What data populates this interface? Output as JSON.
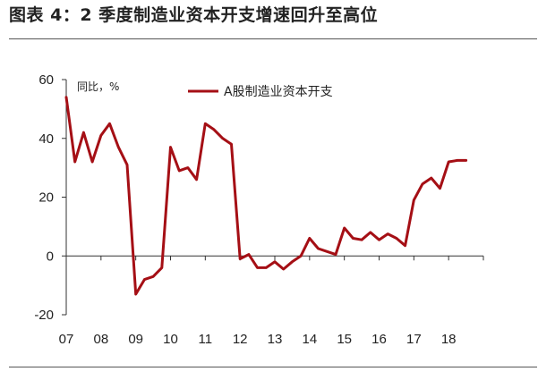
{
  "figure": {
    "title": "图表 4：2 季度制造业资本开支增速回升至高位"
  },
  "chart_data": {
    "type": "line",
    "ylabel": "同比，%",
    "ylim": [
      -20,
      60
    ],
    "yticks": [
      60,
      40,
      20,
      0,
      -20
    ],
    "xlim": [
      2007,
      2019
    ],
    "xticks": [
      "07",
      "08",
      "09",
      "10",
      "11",
      "12",
      "13",
      "14",
      "15",
      "16",
      "17",
      "18"
    ],
    "grid": false,
    "legend_position": "top-center",
    "series": [
      {
        "name": "A股制造业资本开支",
        "color": "#a50f15",
        "x": [
          2007.0,
          2007.25,
          2007.5,
          2007.75,
          2008.0,
          2008.25,
          2008.5,
          2008.75,
          2009.0,
          2009.25,
          2009.5,
          2009.75,
          2010.0,
          2010.25,
          2010.5,
          2010.75,
          2011.0,
          2011.25,
          2011.5,
          2011.75,
          2012.0,
          2012.25,
          2012.5,
          2012.75,
          2013.0,
          2013.25,
          2013.5,
          2013.75,
          2014.0,
          2014.25,
          2014.5,
          2014.75,
          2015.0,
          2015.25,
          2015.5,
          2015.75,
          2016.0,
          2016.25,
          2016.5,
          2016.75,
          2017.0,
          2017.25,
          2017.5,
          2017.75,
          2018.0,
          2018.25,
          2018.5
        ],
        "values": [
          54,
          32,
          42,
          32,
          41,
          45,
          37,
          31,
          -13,
          -8,
          -7,
          -4,
          37,
          29,
          30,
          26,
          45,
          43,
          40,
          38,
          -1,
          0.5,
          -4,
          -4,
          -2,
          -4.5,
          -2,
          0,
          6,
          2.5,
          1.5,
          0.5,
          9.5,
          6,
          5.5,
          8,
          5.5,
          7.5,
          6,
          3.5,
          19,
          24.5,
          26.5,
          23,
          32,
          32.5,
          32.5
        ]
      }
    ]
  }
}
